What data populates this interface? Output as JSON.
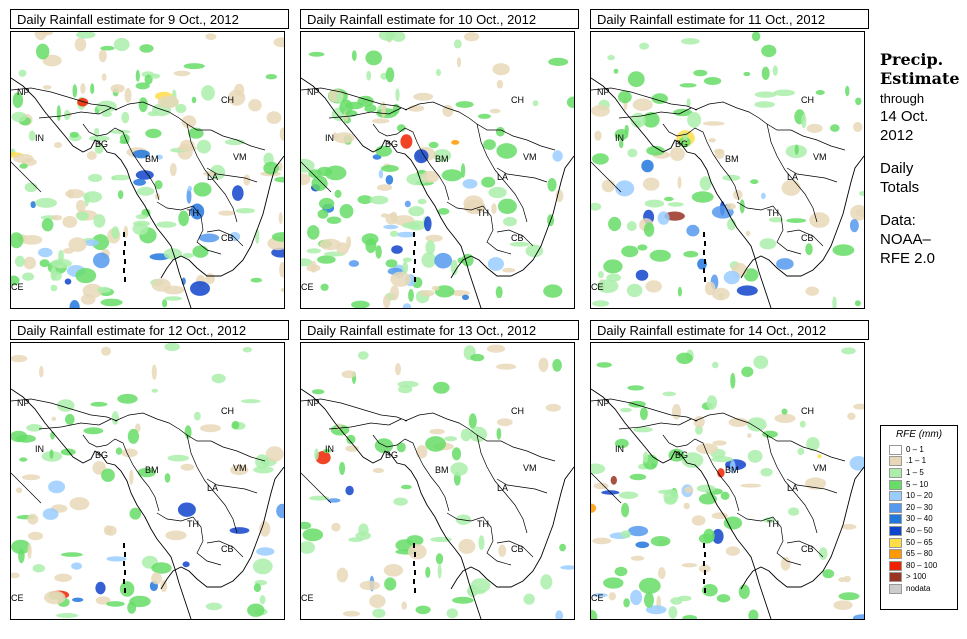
{
  "panels": [
    {
      "title": "Daily Rainfall estimate for  9 Oct., 2012",
      "wetness": 1.0
    },
    {
      "title": "Daily Rainfall estimate for  10 Oct., 2012",
      "wetness": 0.8
    },
    {
      "title": "Daily Rainfall estimate for  11 Oct., 2012",
      "wetness": 0.6
    },
    {
      "title": "Daily Rainfall estimate for  12 Oct., 2012",
      "wetness": 0.5
    },
    {
      "title": "Daily Rainfall estimate for  13 Oct., 2012",
      "wetness": 0.45
    },
    {
      "title": "Daily Rainfall estimate for  14 Oct., 2012",
      "wetness": 0.55
    }
  ],
  "map_labels": {
    "np": "NP",
    "ch": "CH",
    "in": "IN",
    "bg": "BG",
    "bm": "BM",
    "vm": "VM",
    "la": "LA",
    "th": "TH",
    "cb": "CB",
    "ce": "CE"
  },
  "side": {
    "heading_line1": "Precip.",
    "heading_line2": "Estimate",
    "through": "through",
    "date_line1": "14 Oct.",
    "date_line2": "2012",
    "totals_line1": "Daily",
    "totals_line2": "Totals",
    "data_line1": "Data:",
    "data_line2": "NOAA–",
    "data_line3": "RFE 2.0"
  },
  "legend": {
    "title": "RFE (mm)",
    "items": [
      {
        "label": "0 – 1",
        "color": "#ffffff"
      },
      {
        "label": ".1 – 1",
        "color": "#e8d8b8"
      },
      {
        "label": "1 – 5",
        "color": "#aaeeaa"
      },
      {
        "label": "5 – 10",
        "color": "#66dd66"
      },
      {
        "label": "10 – 20",
        "color": "#99ccff"
      },
      {
        "label": "20 – 30",
        "color": "#5599ee"
      },
      {
        "label": "30 – 40",
        "color": "#2277dd"
      },
      {
        "label": "40 – 50",
        "color": "#1144cc"
      },
      {
        "label": "50 – 65",
        "color": "#ffdd44"
      },
      {
        "label": "65 – 80",
        "color": "#ff9900"
      },
      {
        "label": "80 – 100",
        "color": "#ee2200"
      },
      {
        "label": "> 100",
        "color": "#993322"
      },
      {
        "label": "nodata",
        "color": "#cccccc"
      }
    ]
  }
}
